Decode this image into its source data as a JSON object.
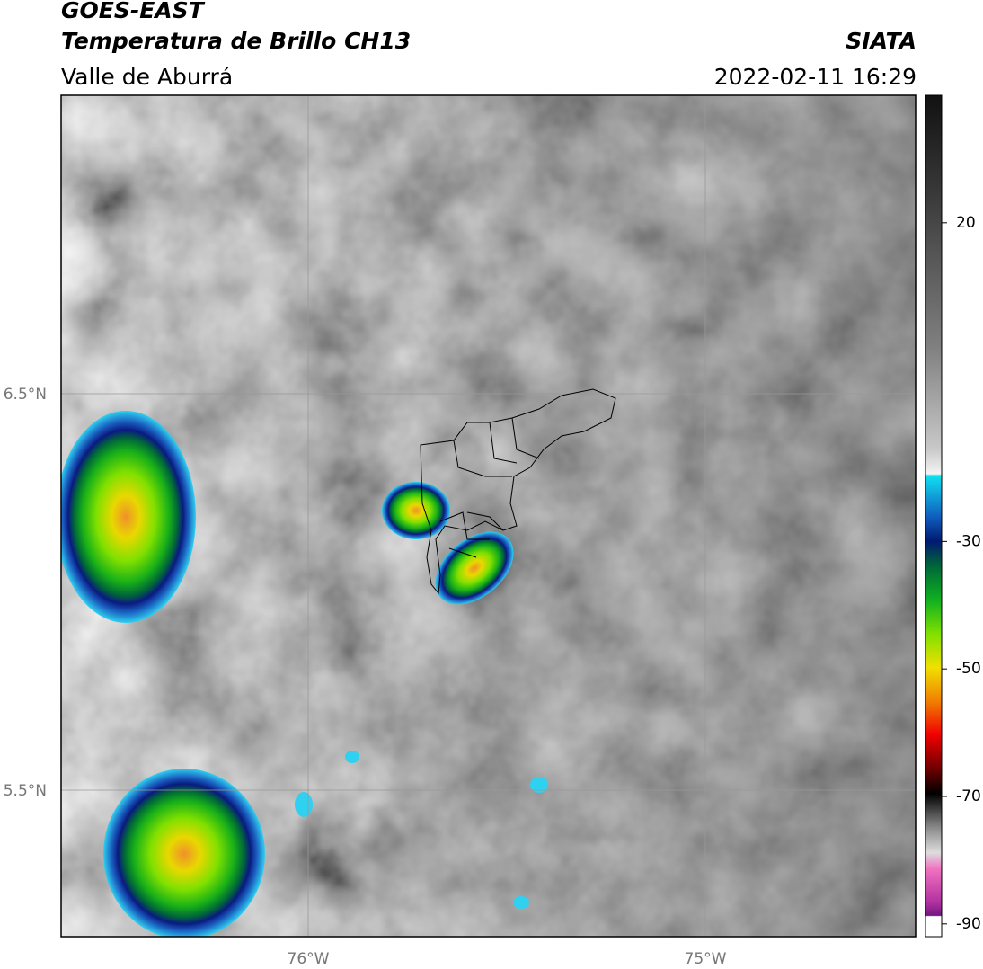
{
  "header": {
    "satellite": "GOES-EAST",
    "product": "Temperatura de Brillo CH13",
    "region": "Valle de Aburrá",
    "source": "SIATA",
    "datetime": "2022-02-11 16:29"
  },
  "map": {
    "lat_labels": [
      "6.5°N",
      "5.5°N"
    ],
    "lon_labels": [
      "76°W",
      "75°W"
    ]
  },
  "colorbar": {
    "range": [
      -92,
      40
    ],
    "ticks": [
      20,
      -30,
      -50,
      -70,
      -90
    ]
  }
}
